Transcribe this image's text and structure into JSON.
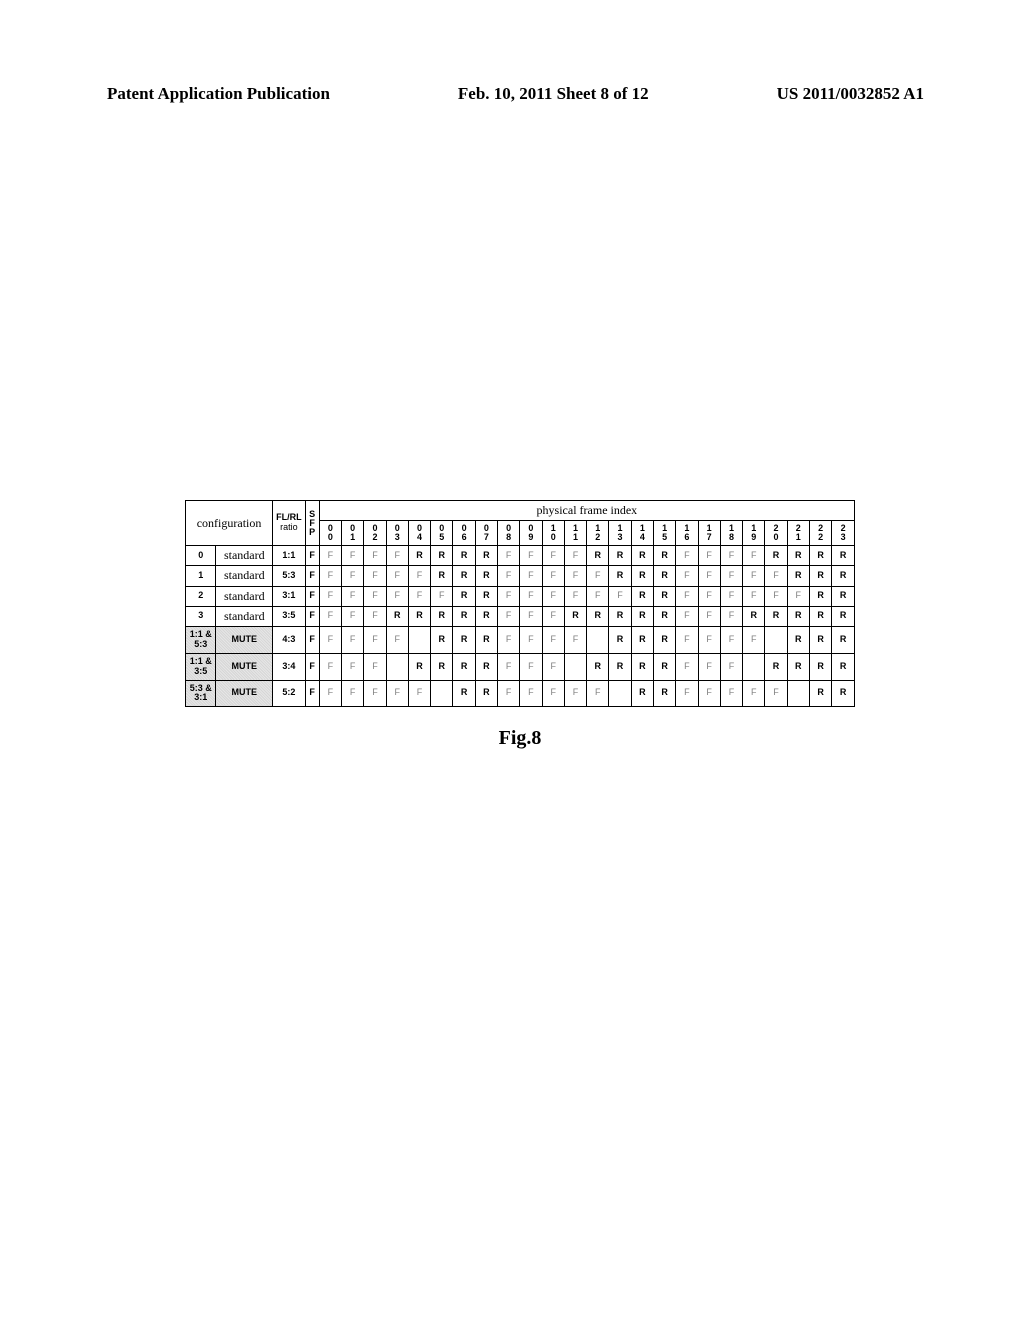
{
  "header": {
    "left": "Patent Application Publication",
    "center": "Feb. 10, 2011 Sheet 8 of 12",
    "right": "US 2011/0032852 A1"
  },
  "table": {
    "config_label": "configuration",
    "flrl_label_top": "FL/RL",
    "flrl_label_bot": "ratio",
    "sfp_top": "S",
    "sfp_mid": "F",
    "sfp_bot": "P",
    "phys_title": "physical frame index",
    "idx_labels": [
      "00",
      "01",
      "02",
      "03",
      "04",
      "05",
      "06",
      "07",
      "08",
      "09",
      "10",
      "11",
      "12",
      "13",
      "14",
      "15",
      "16",
      "17",
      "18",
      "19",
      "20",
      "21",
      "22",
      "23"
    ],
    "rows": [
      {
        "cfg": "0",
        "shaded": false,
        "name": "standard",
        "ratio": "1:1",
        "sfp": "F",
        "cells": [
          "F",
          "F",
          "F",
          "F",
          "R",
          "R",
          "R",
          "R",
          "F",
          "F",
          "F",
          "F",
          "R",
          "R",
          "R",
          "R",
          "F",
          "F",
          "F",
          "F",
          "R",
          "R",
          "R",
          "R"
        ],
        "bold": [
          0,
          0,
          0,
          0,
          1,
          1,
          1,
          1,
          0,
          0,
          0,
          0,
          1,
          1,
          1,
          1,
          0,
          0,
          0,
          0,
          1,
          1,
          1,
          1
        ]
      },
      {
        "cfg": "1",
        "shaded": false,
        "name": "standard",
        "ratio": "5:3",
        "sfp": "F",
        "cells": [
          "F",
          "F",
          "F",
          "F",
          "F",
          "R",
          "R",
          "R",
          "F",
          "F",
          "F",
          "F",
          "F",
          "R",
          "R",
          "R",
          "F",
          "F",
          "F",
          "F",
          "F",
          "R",
          "R",
          "R"
        ],
        "bold": [
          0,
          0,
          0,
          0,
          0,
          1,
          1,
          1,
          0,
          0,
          0,
          0,
          0,
          1,
          1,
          1,
          0,
          0,
          0,
          0,
          0,
          1,
          1,
          1
        ]
      },
      {
        "cfg": "2",
        "shaded": false,
        "name": "standard",
        "ratio": "3:1",
        "sfp": "F",
        "cells": [
          "F",
          "F",
          "F",
          "F",
          "F",
          "F",
          "R",
          "R",
          "F",
          "F",
          "F",
          "F",
          "F",
          "F",
          "R",
          "R",
          "F",
          "F",
          "F",
          "F",
          "F",
          "F",
          "R",
          "R"
        ],
        "bold": [
          0,
          0,
          0,
          0,
          0,
          0,
          1,
          1,
          0,
          0,
          0,
          0,
          0,
          0,
          1,
          1,
          0,
          0,
          0,
          0,
          0,
          0,
          1,
          1
        ]
      },
      {
        "cfg": "3",
        "shaded": false,
        "name": "standard",
        "ratio": "3:5",
        "sfp": "F",
        "cells": [
          "F",
          "F",
          "F",
          "R",
          "R",
          "R",
          "R",
          "R",
          "F",
          "F",
          "F",
          "R",
          "R",
          "R",
          "R",
          "R",
          "F",
          "F",
          "F",
          "R",
          "R",
          "R",
          "R",
          "R"
        ],
        "bold": [
          0,
          0,
          0,
          1,
          1,
          1,
          1,
          1,
          0,
          0,
          0,
          1,
          1,
          1,
          1,
          1,
          0,
          0,
          0,
          1,
          1,
          1,
          1,
          1
        ]
      },
      {
        "cfg": "1:1 &\n5:3",
        "shaded": true,
        "name": "MUTE",
        "ratio": "4:3",
        "sfp": "F",
        "cells": [
          "F",
          "F",
          "F",
          "F",
          "",
          "R",
          "R",
          "R",
          "F",
          "F",
          "F",
          "F",
          "",
          "R",
          "R",
          "R",
          "F",
          "F",
          "F",
          "F",
          "",
          "R",
          "R",
          "R"
        ],
        "bold": [
          0,
          0,
          0,
          0,
          0,
          1,
          1,
          1,
          0,
          0,
          0,
          0,
          0,
          1,
          1,
          1,
          0,
          0,
          0,
          0,
          0,
          1,
          1,
          1
        ]
      },
      {
        "cfg": "1:1 &\n3:5",
        "shaded": true,
        "name": "MUTE",
        "ratio": "3:4",
        "sfp": "F",
        "cells": [
          "F",
          "F",
          "F",
          "",
          "R",
          "R",
          "R",
          "R",
          "F",
          "F",
          "F",
          "",
          "R",
          "R",
          "R",
          "R",
          "F",
          "F",
          "F",
          "",
          "R",
          "R",
          "R",
          "R"
        ],
        "bold": [
          0,
          0,
          0,
          0,
          1,
          1,
          1,
          1,
          0,
          0,
          0,
          0,
          1,
          1,
          1,
          1,
          0,
          0,
          0,
          0,
          1,
          1,
          1,
          1
        ]
      },
      {
        "cfg": "5:3 &\n3:1",
        "shaded": true,
        "name": "MUTE",
        "ratio": "5:2",
        "sfp": "F",
        "cells": [
          "F",
          "F",
          "F",
          "F",
          "F",
          "",
          "R",
          "R",
          "F",
          "F",
          "F",
          "F",
          "F",
          "",
          "R",
          "R",
          "F",
          "F",
          "F",
          "F",
          "F",
          "",
          "R",
          "R"
        ],
        "bold": [
          0,
          0,
          0,
          0,
          0,
          0,
          1,
          1,
          0,
          0,
          0,
          0,
          0,
          0,
          1,
          1,
          0,
          0,
          0,
          0,
          0,
          0,
          1,
          1
        ]
      }
    ]
  },
  "caption": "Fig.8"
}
